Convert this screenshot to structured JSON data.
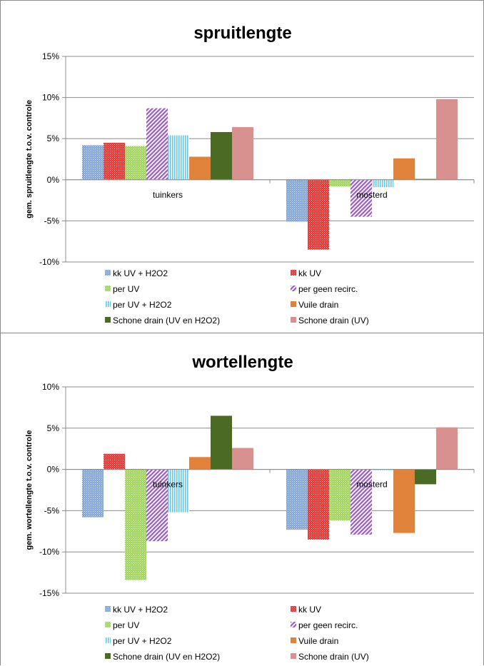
{
  "colors": {
    "kk UV + H2O2": "#7fa3d8",
    "kk UV": "#e8302c",
    "per UV": "#9fd65a",
    "per geen recirc.": "#9a5cc2",
    "per UV + H2O2": "#63c9ea",
    "Vuile drain": "#e0823a",
    "Schone drain (UV en H2O2)": "#4b6a23",
    "Schone drain (UV)": "#d99190"
  },
  "patterns": {
    "kk UV + H2O2": "dots",
    "kk UV": "dots",
    "per UV": "dots",
    "per geen recirc.": "diag",
    "per UV + H2O2": "vert",
    "Vuile drain": "solid",
    "Schone drain (UV en H2O2)": "solid",
    "Schone drain (UV)": "solid"
  },
  "chart_data": [
    {
      "type": "bar",
      "title": "spruitlengte",
      "ylabel": "gem. spruitlengte t.o.v. controle",
      "ylim": [
        -0.1,
        0.15
      ],
      "yticks": [
        -0.1,
        -0.05,
        0,
        0.05,
        0.1,
        0.15
      ],
      "ytick_labels": [
        "-10%",
        "-5%",
        "0%",
        "5%",
        "10%",
        "15%"
      ],
      "categories": [
        "tuinkers",
        "mosterd"
      ],
      "legend_position": "bottom",
      "series": [
        {
          "name": "kk UV + H2O2",
          "values": [
            0.042,
            -0.051
          ]
        },
        {
          "name": "kk UV",
          "values": [
            0.045,
            -0.085
          ]
        },
        {
          "name": "per UV",
          "values": [
            0.041,
            -0.008
          ]
        },
        {
          "name": "per geen recirc.",
          "values": [
            0.087,
            -0.045
          ]
        },
        {
          "name": "per UV + H2O2",
          "values": [
            0.054,
            -0.009
          ]
        },
        {
          "name": "Vuile drain",
          "values": [
            0.028,
            0.026
          ]
        },
        {
          "name": "Schone drain (UV en H2O2)",
          "values": [
            0.058,
            0.001
          ]
        },
        {
          "name": "Schone drain (UV)",
          "values": [
            0.064,
            0.098
          ]
        }
      ]
    },
    {
      "type": "bar",
      "title": "wortellengte",
      "ylabel": "gem. wortellengte t.o.v. controle",
      "ylim": [
        -0.15,
        0.1
      ],
      "yticks": [
        -0.15,
        -0.1,
        -0.05,
        0,
        0.05,
        0.1
      ],
      "ytick_labels": [
        "-15%",
        "-10%",
        "-5%",
        "0%",
        "5%",
        "10%"
      ],
      "categories": [
        "tuinkers",
        "mosterd"
      ],
      "legend_position": "bottom",
      "series": [
        {
          "name": "kk UV + H2O2",
          "values": [
            -0.058,
            -0.073
          ]
        },
        {
          "name": "kk UV",
          "values": [
            0.019,
            -0.085
          ]
        },
        {
          "name": "per UV",
          "values": [
            -0.134,
            -0.062
          ]
        },
        {
          "name": "per geen recirc.",
          "values": [
            -0.087,
            -0.079
          ]
        },
        {
          "name": "per UV + H2O2",
          "values": [
            -0.052,
            -0.001
          ]
        },
        {
          "name": "Vuile drain",
          "values": [
            0.015,
            -0.077
          ]
        },
        {
          "name": "Schone drain (UV en H2O2)",
          "values": [
            0.065,
            -0.018
          ]
        },
        {
          "name": "Schone drain (UV)",
          "values": [
            0.026,
            0.051
          ]
        }
      ]
    }
  ]
}
